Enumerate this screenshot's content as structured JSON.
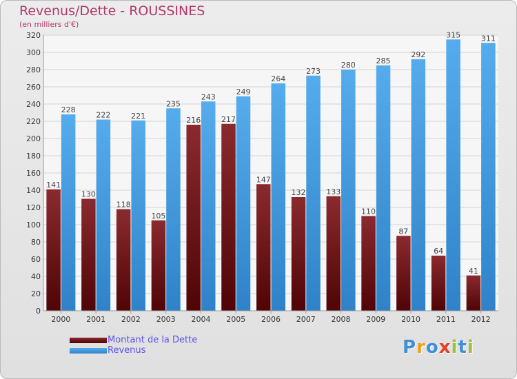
{
  "title": "Revenus/Dette - ROUSSINES",
  "subtitle": "(en milliers d'€)",
  "colors": {
    "title": "#b0386a",
    "dette": "#6b0e12",
    "revenus": "#3d97dd",
    "legend_text": "#5a54e8"
  },
  "chart_data": {
    "type": "bar",
    "title": "Revenus/Dette - ROUSSINES",
    "ylabel": "(en milliers d'€)",
    "xlabel": "",
    "ylim": [
      0,
      320
    ],
    "yticks": [
      0,
      20,
      40,
      60,
      80,
      100,
      120,
      140,
      160,
      180,
      200,
      220,
      240,
      260,
      280,
      300,
      320
    ],
    "grid": true,
    "legend_position": "bottom-left",
    "categories": [
      "2000",
      "2001",
      "2002",
      "2003",
      "2004",
      "2005",
      "2006",
      "2007",
      "2008",
      "2009",
      "2010",
      "2011",
      "2012"
    ],
    "series": [
      {
        "name": "Montant de la Dette",
        "values": [
          141,
          130,
          118,
          105,
          216,
          217,
          147,
          132,
          133,
          110,
          87,
          64,
          41
        ]
      },
      {
        "name": "Revenus",
        "values": [
          228,
          222,
          221,
          235,
          243,
          249,
          264,
          273,
          280,
          285,
          292,
          315,
          311
        ]
      }
    ]
  },
  "legend": [
    {
      "label": "Montant de la Dette"
    },
    {
      "label": "Revenus"
    }
  ],
  "logo": {
    "letters": [
      "P",
      "r",
      "o",
      "x",
      "i",
      "t",
      "i"
    ],
    "letter_colors": [
      "#3e8fd8",
      "#e8a21c",
      "#3e8fd8",
      "#e2402a",
      "#9bc23a",
      "#3e8fd8",
      "#9bc23a"
    ]
  }
}
